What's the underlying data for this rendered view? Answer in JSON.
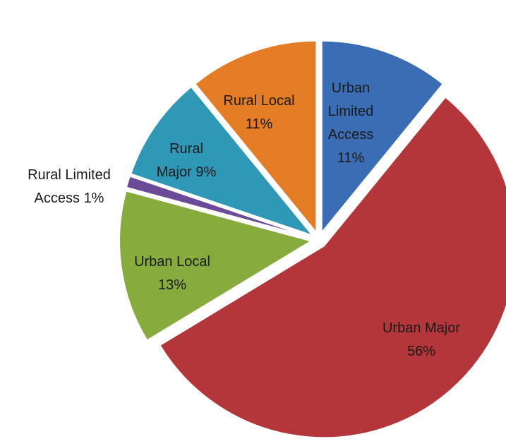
{
  "chart_data": {
    "type": "pie",
    "categories": [
      "Urban Limited Access",
      "Urban Major",
      "Urban Local",
      "Rural Limited Access",
      "Rural Major",
      "Rural Local"
    ],
    "values": [
      11,
      56,
      13,
      1,
      9,
      11
    ],
    "value_labels": [
      "11%",
      "56%",
      "13%",
      "1%",
      "9%",
      "11%"
    ],
    "colors": [
      "#3a6db3",
      "#b3363a",
      "#88ab3e",
      "#6b4a98",
      "#2f98b6",
      "#e47c25"
    ]
  }
}
